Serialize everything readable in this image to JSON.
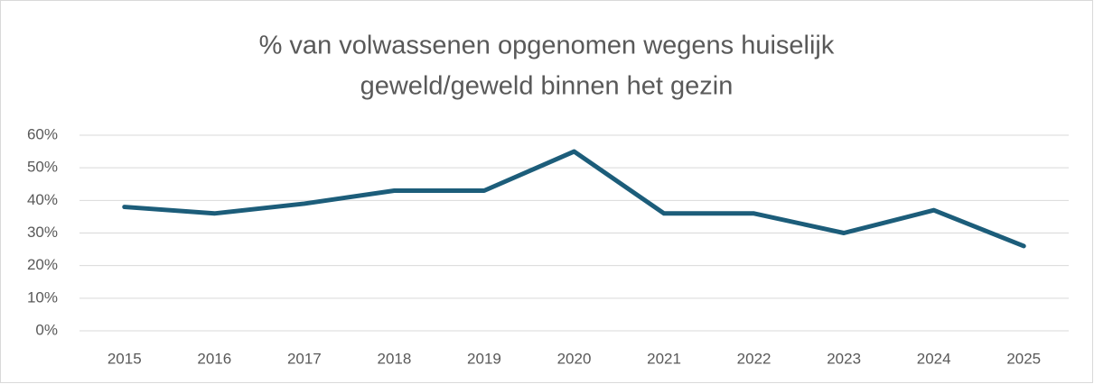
{
  "chart_data": {
    "type": "line",
    "title": [
      "% van volwassenen opgenomen wegens huiselijk",
      "geweld/geweld binnen het gezin"
    ],
    "categories": [
      "2015",
      "2016",
      "2017",
      "2018",
      "2019",
      "2020",
      "2021",
      "2022",
      "2023",
      "2024",
      "2025"
    ],
    "values": [
      38,
      36,
      39,
      43,
      43,
      55,
      36,
      36,
      30,
      37,
      26
    ],
    "color": "#1c5d7a",
    "ylim": [
      0,
      60
    ],
    "yticks": [
      {
        "value": 0,
        "label": "0%"
      },
      {
        "value": 10,
        "label": "10%"
      },
      {
        "value": 20,
        "label": "20%"
      },
      {
        "value": 30,
        "label": "30%"
      },
      {
        "value": 40,
        "label": "40%"
      },
      {
        "value": 50,
        "label": "50%"
      },
      {
        "value": 60,
        "label": "60%"
      }
    ],
    "grid": true
  }
}
